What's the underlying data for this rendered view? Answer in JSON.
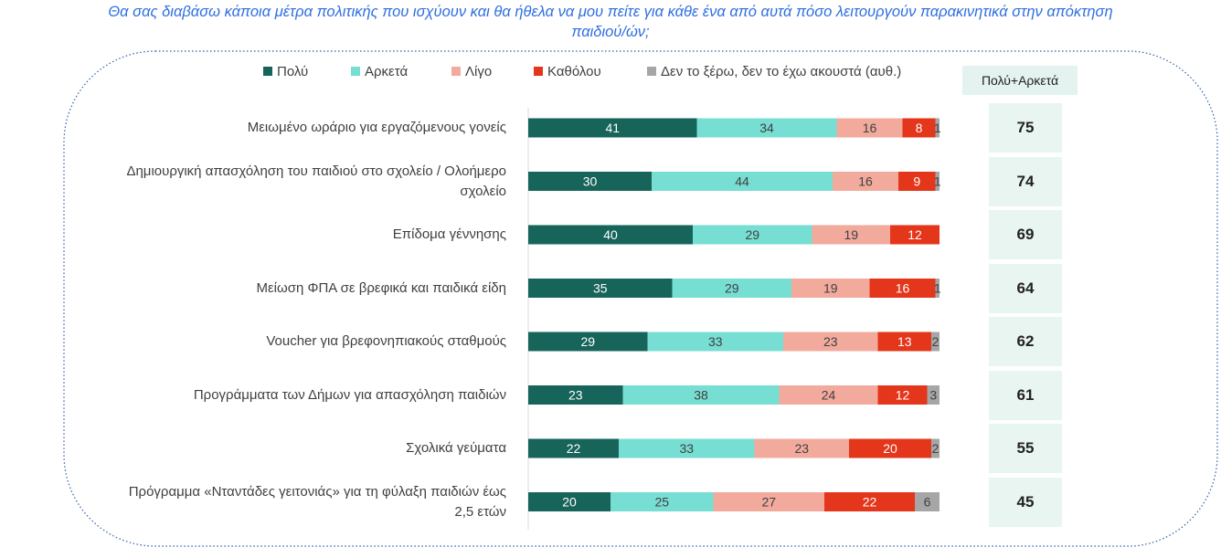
{
  "title": {
    "line1": "Θα σας διαβάσω κάποια μέτρα πολιτικής που ισχύουν και θα ήθελα να μου πείτε για κάθε ένα από αυτά πόσο λειτουργούν παρακινητικά στην απόκτηση",
    "line2": "παιδιού/ών;"
  },
  "colors": {
    "title": "#2f6fe0",
    "frame": "#2f5fa8",
    "summary_box": "#e9f5f1"
  },
  "chart_data": {
    "type": "bar",
    "orientation": "horizontal",
    "stacked": true,
    "xlim": [
      0,
      100
    ],
    "legend_position": "top",
    "categories": [
      "Μειωμένο ωράριο για εργαζόμενους γονείς",
      "Δημιουργική απασχόληση του παιδιού στο σχολείο / Ολοήμερο σχολείο",
      "Επίδομα γέννησης",
      "Μείωση ΦΠΑ σε βρεφικά και παιδικά είδη",
      "Voucher για βρεφονηπιακούς σταθμούς",
      "Προγράμματα των Δήμων για απασχόληση παιδιών",
      "Σχολικά γεύματα",
      "Πρόγραμμα «Νταντάδες γειτονιάς» για τη φύλαξη παιδιών έως 2,5 ετών"
    ],
    "category_lines": [
      [
        "Μειωμένο ωράριο για εργαζόμενους γονείς"
      ],
      [
        "Δημιουργική απασχόληση του παιδιού στο σχολείο / Ολοήμερο",
        "σχολείο"
      ],
      [
        "Επίδομα γέννησης"
      ],
      [
        "Μείωση ΦΠΑ σε βρεφικά και παιδικά είδη"
      ],
      [
        "Voucher για βρεφονηπιακούς σταθμούς"
      ],
      [
        "Προγράμματα των Δήμων για απασχόληση παιδιών"
      ],
      [
        "Σχολικά γεύματα"
      ],
      [
        "Πρόγραμμα «Νταντάδες γειτονιάς» για τη φύλαξη παιδιών έως",
        "2,5 ετών"
      ]
    ],
    "series": [
      {
        "name": "Πολύ",
        "color": "#17645a",
        "label_color": "#ffffff",
        "values": [
          41,
          30,
          40,
          35,
          29,
          23,
          22,
          20
        ]
      },
      {
        "name": "Αρκετά",
        "color": "#77ded3",
        "label_color": "#404040",
        "values": [
          34,
          44,
          29,
          29,
          33,
          38,
          33,
          25
        ]
      },
      {
        "name": "Λίγο",
        "color": "#f2aa9d",
        "label_color": "#404040",
        "values": [
          16,
          16,
          19,
          19,
          23,
          24,
          23,
          27
        ]
      },
      {
        "name": "Καθόλου",
        "color": "#e3361a",
        "label_color": "#ffffff",
        "values": [
          8,
          9,
          12,
          16,
          13,
          12,
          20,
          22
        ]
      },
      {
        "name": "Δεν το ξέρω, δεν το έχω ακουστά (αυθ.)",
        "color": "#a6a6a6",
        "label_color": "#404040",
        "values": [
          1,
          1,
          null,
          1,
          2,
          3,
          2,
          6
        ]
      }
    ],
    "summary": {
      "header": "Πολύ+Αρκετά",
      "values": [
        75,
        74,
        69,
        64,
        62,
        61,
        55,
        45
      ]
    }
  }
}
